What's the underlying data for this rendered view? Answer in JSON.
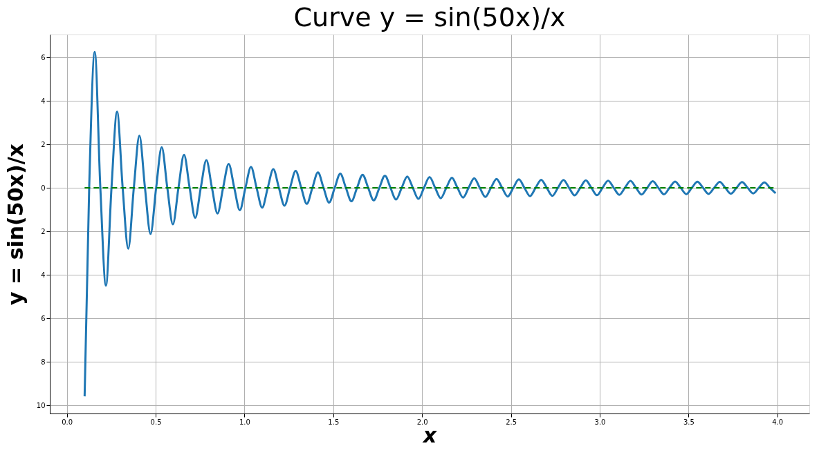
{
  "chart_data": {
    "type": "line",
    "title": "Curve y = sin(50x)/x",
    "xlabel": "x",
    "ylabel": "y = sin(50x)/x",
    "xlim": [
      -0.096,
      4.18
    ],
    "ylim": [
      -10.38,
      7.05
    ],
    "xticks": [
      {
        "value": 0,
        "label": "0.0"
      },
      0.5,
      {
        "value": 1,
        "label": "1.0"
      },
      1.5,
      {
        "value": 2,
        "label": "2.0"
      },
      2.5,
      {
        "value": 3,
        "label": "3.0"
      },
      3.5,
      {
        "value": 4,
        "label": "4.0"
      }
    ],
    "yticks": [
      6,
      4,
      2,
      0,
      {
        "value": -2,
        "label": "2"
      },
      {
        "value": -4,
        "label": "4"
      },
      {
        "value": -6,
        "label": "6"
      },
      {
        "value": -8,
        "label": "8"
      },
      {
        "value": -10,
        "label": "10"
      }
    ],
    "grid": true,
    "series": [
      {
        "color": "#1f77b4",
        "line_style": "solid",
        "x": [
          0.1,
          0.1257,
          0.1571,
          0.1885,
          0.2199,
          0.2513,
          0.2827,
          0.3142,
          0.3456,
          0.377,
          0.4084,
          0.4398,
          0.4712,
          0.5027,
          0.5341,
          0.5655,
          0.5969,
          0.6283,
          0.6597,
          0.6912,
          0.7226,
          0.754,
          0.7854,
          0.8168,
          0.8482,
          0.8796,
          0.9111,
          0.9425,
          0.9739,
          1.0053,
          1.0367,
          1.0681,
          1.0996,
          1.131,
          1.1624,
          1.1938,
          1.2252,
          1.2566,
          1.2881,
          1.3195,
          1.3509,
          1.3823,
          1.4137,
          1.4451,
          1.4765,
          1.508,
          1.5394,
          1.5708,
          1.6022,
          1.6336,
          1.665,
          1.6965,
          1.7279,
          1.7593,
          1.7907,
          1.8221,
          1.8535,
          1.885,
          1.9164,
          1.9478,
          1.9792,
          2.0106,
          2.042,
          2.0735,
          2.1049,
          2.1363,
          2.1677,
          2.1991,
          2.2305,
          2.2619,
          2.2934,
          2.3248,
          2.3562,
          2.3876,
          2.419,
          2.4504,
          2.4819,
          2.5133,
          2.5447,
          2.5761,
          2.6075,
          2.6389,
          2.6704,
          2.7018,
          2.7332,
          2.7646,
          2.796,
          2.8274,
          2.8588,
          2.8903,
          2.9217,
          2.9531,
          2.9845,
          3.0159,
          3.0473,
          3.0788,
          3.1102,
          3.1416,
          3.173,
          3.2044,
          3.2358,
          3.2673,
          3.2987,
          3.3301,
          3.3615,
          3.3929,
          3.4243,
          3.4558,
          3.4872,
          3.5186,
          3.55,
          3.5814,
          3.6128,
          3.6442,
          3.6757,
          3.7071,
          3.7385,
          3.7699,
          3.8013,
          3.8327,
          3.8642,
          3.8956,
          3.927,
          3.9584,
          3.99
        ],
        "values": [
          -9.59,
          0,
          6.25,
          0,
          -4.5,
          0,
          3.5,
          0,
          -2.8,
          0,
          2.4,
          0,
          -2.12,
          0,
          1.87,
          0,
          -1.68,
          0,
          1.52,
          0,
          -1.38,
          0,
          1.27,
          0,
          -1.18,
          0,
          1.1,
          0,
          -1.03,
          0,
          0.96,
          0,
          -0.91,
          0,
          0.86,
          0,
          -0.82,
          0,
          0.78,
          0,
          -0.74,
          0,
          0.71,
          0,
          -0.68,
          0,
          0.65,
          0,
          -0.62,
          0,
          0.6,
          0,
          -0.58,
          0,
          0.56,
          0,
          -0.54,
          0,
          0.52,
          0,
          -0.51,
          0,
          0.49,
          0,
          -0.48,
          0,
          0.46,
          0,
          -0.45,
          0,
          0.44,
          0,
          -0.42,
          0,
          0.41,
          0,
          -0.4,
          0,
          0.39,
          0,
          -0.38,
          0,
          0.37,
          0,
          -0.37,
          0,
          0.36,
          0,
          -0.35,
          0,
          0.34,
          0,
          -0.34,
          0,
          0.33,
          0,
          -0.32,
          0,
          0.32,
          0,
          -0.31,
          0,
          0.3,
          0,
          -0.3,
          0,
          0.29,
          0,
          -0.29,
          0,
          0.28,
          0,
          -0.28,
          0,
          0.27,
          0,
          -0.27,
          0,
          0.26,
          0,
          -0.26,
          0,
          0.25,
          0,
          -0.25
        ]
      },
      {
        "color": "#008000",
        "line_style": "dashed",
        "x": [
          0.1,
          3.99
        ],
        "values": [
          0,
          0
        ]
      }
    ]
  }
}
